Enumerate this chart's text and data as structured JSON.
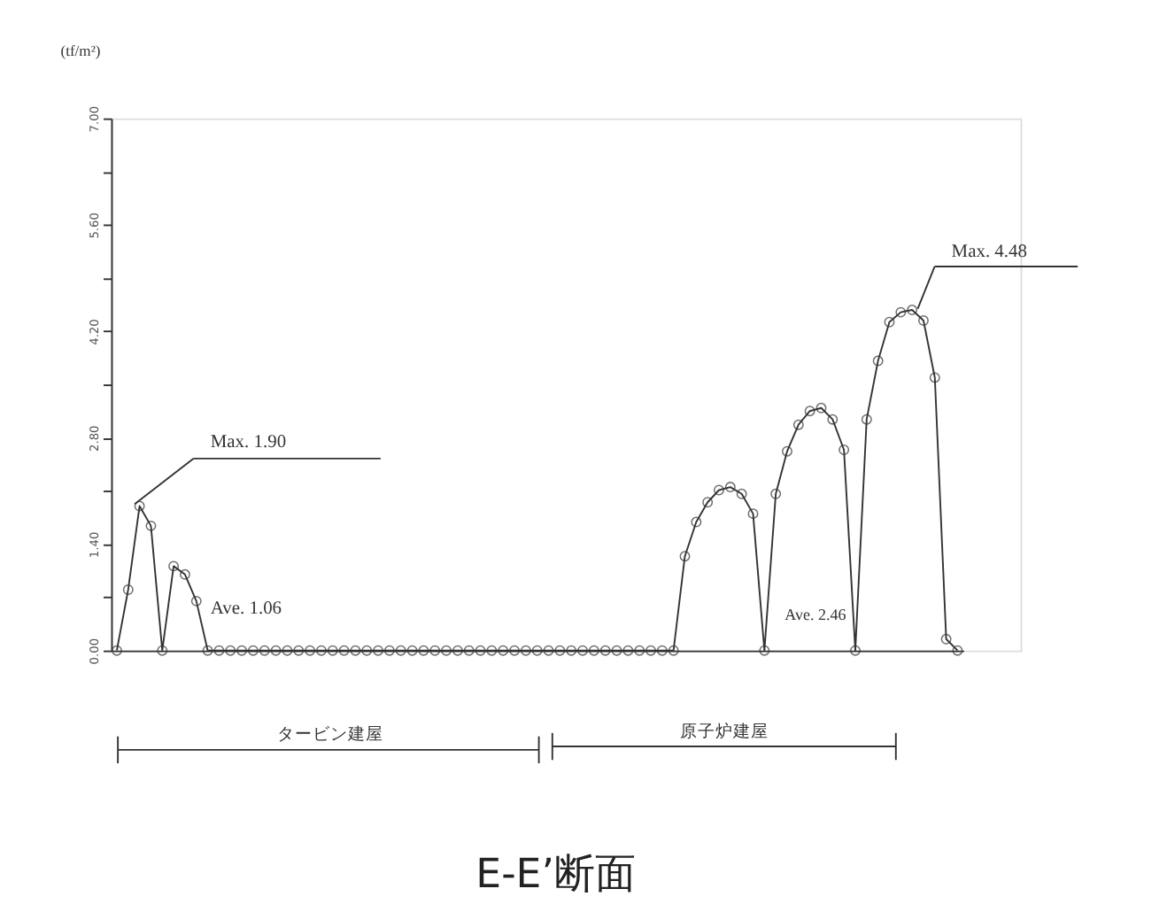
{
  "chart_data": {
    "type": "line",
    "title": "E-E’断面",
    "ylabel": "(tf/m²)",
    "categories": [
      null,
      null,
      null,
      null,
      null,
      null,
      null,
      null,
      null,
      null,
      null,
      null,
      null,
      null,
      null,
      null,
      null,
      null,
      null,
      null,
      null,
      null,
      null,
      null,
      null,
      null,
      null,
      null,
      null,
      null,
      null,
      null,
      null,
      null,
      null,
      null,
      null,
      null,
      null,
      null,
      null,
      null,
      null,
      null,
      null,
      null,
      null,
      null,
      null,
      null,
      null,
      null,
      null,
      null,
      null,
      null,
      null,
      null,
      null,
      null,
      null,
      null,
      null,
      null,
      null,
      null,
      null,
      null,
      null,
      null,
      null,
      null,
      null,
      null,
      null
    ],
    "series": [
      {
        "color": "#333333",
        "values": [
          0,
          0.8,
          1.9,
          1.64,
          0,
          1.11,
          1.0,
          0.65,
          0,
          0,
          0,
          0,
          0,
          0,
          0,
          0,
          0,
          0,
          0,
          0,
          0,
          0,
          0,
          0,
          0,
          0,
          0,
          0,
          0,
          0,
          0,
          0,
          0,
          0,
          0,
          0,
          0,
          0,
          0,
          0,
          0,
          0,
          0,
          0,
          0,
          0,
          0,
          0,
          0,
          0,
          1.24,
          1.69,
          1.95,
          2.11,
          2.15,
          2.06,
          1.8,
          0,
          2.06,
          2.62,
          2.97,
          3.15,
          3.19,
          3.04,
          2.64,
          0,
          3.04,
          3.81,
          4.32,
          4.45,
          4.48,
          4.34,
          3.59,
          0.15,
          0
        ]
      }
    ],
    "ylim": [
      0,
      7
    ],
    "yticks": [
      {
        "value": 0,
        "label": "0.00"
      },
      {
        "value": 0.7,
        "label": null
      },
      {
        "value": 1.4,
        "label": "1.40"
      },
      {
        "value": 2.1,
        "label": null
      },
      {
        "value": 2.8,
        "label": "2.80"
      },
      {
        "value": 3.5,
        "label": null
      },
      {
        "value": 4.2,
        "label": "4.20"
      },
      {
        "value": 4.9,
        "label": null
      },
      {
        "value": 5.6,
        "label": "5.60"
      },
      {
        "value": 6.3,
        "label": null
      },
      {
        "value": 7,
        "label": "7.00"
      }
    ],
    "annotations": [
      "Max. 1.90",
      "Ave. 1.06",
      "Ave. 2.46",
      "Max. 4.48",
      "タービン建屋",
      "原子炉建屋"
    ],
    "tick_labels": "y",
    "marker": "circle",
    "line_style": "solid",
    "grid": false
  }
}
